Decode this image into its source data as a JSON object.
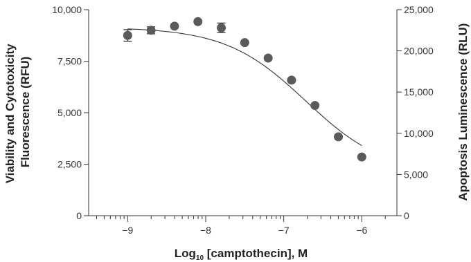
{
  "chart_data": {
    "type": "scatter",
    "xlabel_main": "Log",
    "xlabel_sub": "10",
    "xlabel_rest": " [camptothecin], M",
    "ylabel_left_line1": "Viability and Cytotoxicity",
    "ylabel_left_line2": "Fluorescence (RFU)",
    "ylabel_right": "Apoptosis Luminescence (RLU)",
    "xlim": [
      -9.5,
      -5.55
    ],
    "ylim_left": [
      0,
      10000
    ],
    "ylim_right": [
      0,
      25000
    ],
    "x_major_ticks": [
      -9,
      -8,
      -7,
      -6
    ],
    "x_tick_labels": [
      "−9",
      "−8",
      "−7",
      "−6"
    ],
    "y_left_ticks": [
      0,
      2500,
      5000,
      7500,
      10000
    ],
    "y_left_tick_labels": [
      "0",
      "2,500",
      "5,000",
      "7,500",
      "10,000"
    ],
    "y_right_ticks": [
      0,
      5000,
      10000,
      15000,
      20000,
      25000
    ],
    "y_right_tick_labels": [
      "0",
      "5,000",
      "10,000",
      "15,000",
      "20,000",
      "25,000"
    ],
    "grid": false,
    "series": [
      {
        "x": [
          -9.0,
          -8.7,
          -8.4,
          -8.1,
          -7.8,
          -7.5,
          -7.2,
          -6.9,
          -6.6,
          -6.3,
          -6.0
        ],
        "y": [
          8750,
          9000,
          9200,
          9420,
          9120,
          8400,
          7650,
          6580,
          5350,
          3830,
          2850
        ],
        "err": [
          280,
          170,
          0,
          0,
          230,
          0,
          0,
          0,
          0,
          0,
          0
        ]
      }
    ],
    "fit": {
      "type": "sigmoid",
      "top": 9150,
      "bottom": 2000,
      "log_ec50": -6.72,
      "hill": -0.85,
      "x_range": [
        -9.0,
        -6.0
      ]
    }
  }
}
